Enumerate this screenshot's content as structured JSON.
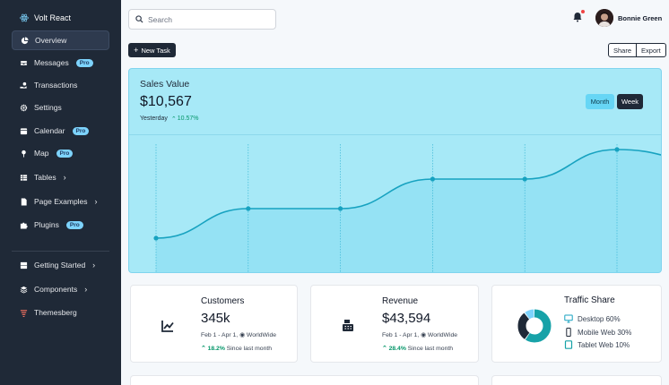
{
  "sidebar": {
    "brand": "Volt React",
    "items": [
      {
        "label": "Overview",
        "icon": "pie-chart-icon"
      },
      {
        "label": "Messages",
        "icon": "inbox-icon",
        "badge": "Pro"
      },
      {
        "label": "Transactions",
        "icon": "hand-coin-icon"
      },
      {
        "label": "Settings",
        "icon": "gear-icon"
      },
      {
        "label": "Calendar",
        "icon": "calendar-icon",
        "badge": "Pro"
      },
      {
        "label": "Map",
        "icon": "map-pin-icon",
        "badge": "Pro"
      },
      {
        "label": "Tables",
        "icon": "table-icon"
      },
      {
        "label": "Page Examples",
        "icon": "document-icon"
      },
      {
        "label": "Plugins",
        "icon": "puzzle-icon",
        "badge": "Pro"
      },
      {
        "label": "Getting Started",
        "icon": "book-icon"
      },
      {
        "label": "Components",
        "icon": "layers-icon"
      },
      {
        "label": "Themesberg",
        "icon": "themesberg-logo-icon"
      }
    ]
  },
  "topbar": {
    "search_placeholder": "Search",
    "user_name": "Bonnie Green"
  },
  "actions": {
    "new_task": "New Task",
    "share": "Share",
    "export": "Export"
  },
  "sales": {
    "title": "Sales Value",
    "value": "$10,567",
    "period_label": "Yesterday",
    "change": "10.57%",
    "toggle_month": "Month",
    "toggle_week": "Week"
  },
  "chart_data": {
    "type": "line",
    "title": "Sales Value",
    "x": [
      0,
      1,
      2,
      3,
      4,
      5,
      6
    ],
    "values": [
      1.0,
      2.0,
      2.0,
      3.0,
      3.0,
      4.0,
      3.6
    ],
    "ylim": [
      0,
      5
    ],
    "grid": "vertical dotted",
    "colors": {
      "line": "#17a2c0",
      "fill": "#8fdff3"
    }
  },
  "cards": {
    "customers": {
      "title": "Customers",
      "value": "345k",
      "date": "Feb 1 - Apr 1,",
      "region": "WorldWide",
      "delta": "18.2%",
      "delta_text": "Since last month"
    },
    "revenue": {
      "title": "Revenue",
      "value": "$43,594",
      "date": "Feb 1 - Apr 1,",
      "region": "WorldWide",
      "delta": "28.4%",
      "delta_text": "Since last month"
    },
    "traffic": {
      "title": "Traffic Share",
      "items": [
        {
          "label": "Desktop 60%",
          "icon": "desktop-icon"
        },
        {
          "label": "Mobile Web 30%",
          "icon": "mobile-icon"
        },
        {
          "label": "Tablet Web 10%",
          "icon": "tablet-icon"
        }
      ],
      "shares": [
        60,
        30,
        10
      ],
      "colors": [
        "#17a2a8",
        "#1f2937",
        "#7dd3fc"
      ]
    }
  }
}
